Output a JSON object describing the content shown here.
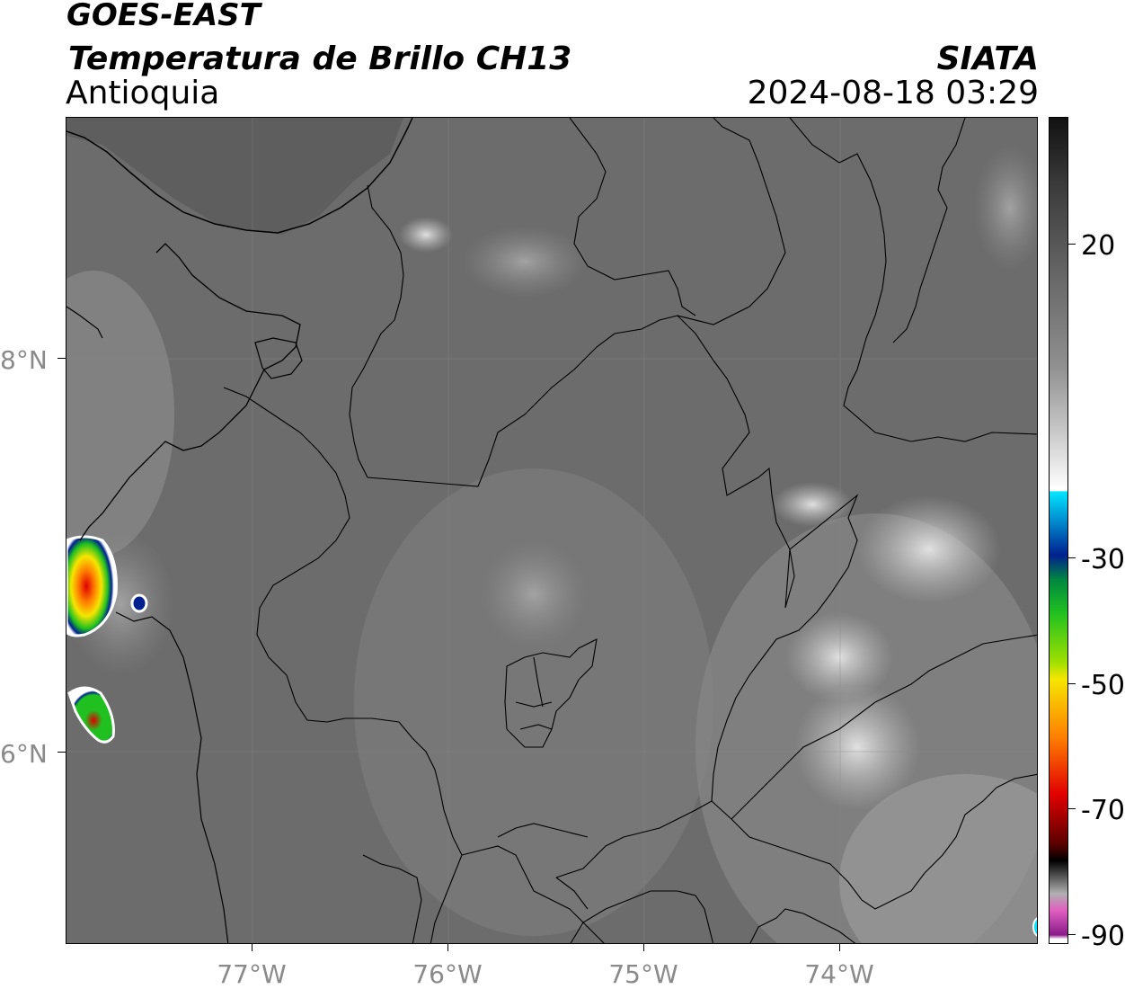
{
  "header": {
    "satellite": "GOES-EAST",
    "product": "Temperatura de Brillo CH13",
    "region": "Antioquia",
    "organization": "SIATA",
    "datetime": "2024-08-18 03:29"
  },
  "map": {
    "latitude_labels": [
      "8°N",
      "6°N"
    ],
    "longitude_labels": [
      "77°W",
      "76°W",
      "75°W",
      "74°W"
    ]
  },
  "colorbar": {
    "tick_labels": [
      "20",
      "-30",
      "-50",
      "-70",
      "-90"
    ],
    "colors": {
      "warm_dark": "#111111",
      "gray_mid": "#8f8f8f",
      "white": "#ffffff",
      "cyan": "#00e5ff",
      "blue": "#00208f",
      "green": "#20c020",
      "yellow": "#f5e600",
      "orange": "#ff8000",
      "red": "#e00000",
      "dark_red": "#5a0000",
      "pink": "#e060c0",
      "purple": "#8a1a8a"
    }
  }
}
